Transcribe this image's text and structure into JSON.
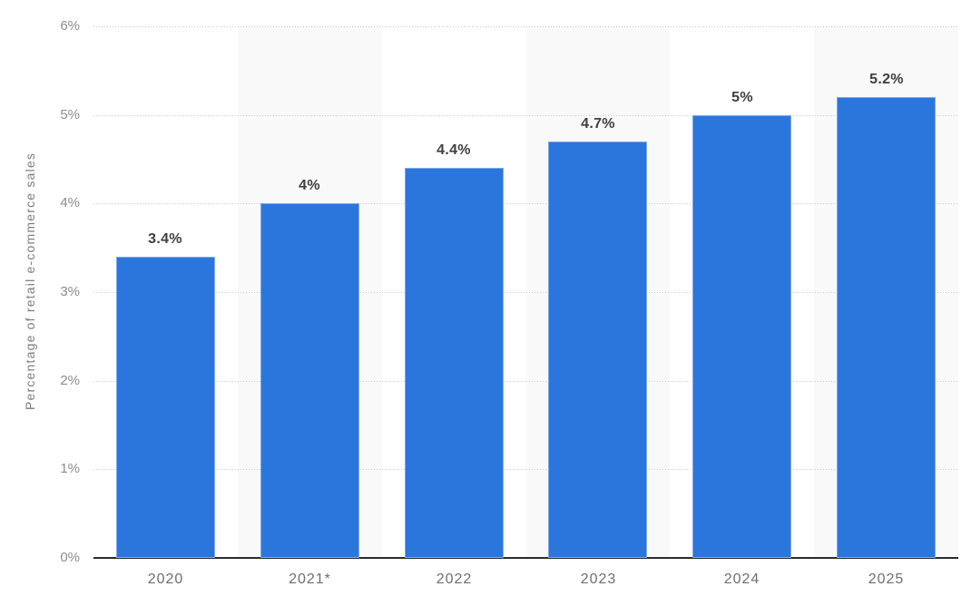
{
  "chart_data": {
    "type": "bar",
    "title": "",
    "xlabel": "",
    "ylabel": "Percentage of retail e-commerce sales",
    "categories": [
      "2020",
      "2021*",
      "2022",
      "2023",
      "2024",
      "2025"
    ],
    "values": [
      3.4,
      4,
      4.4,
      4.7,
      5,
      5.2
    ],
    "value_labels": [
      "3.4%",
      "4%",
      "4.4%",
      "4.7%",
      "5%",
      "5.2%"
    ],
    "ylim": [
      0,
      6
    ],
    "ytick_labels": [
      "0%",
      "1%",
      "2%",
      "3%",
      "4%",
      "5%",
      "6%"
    ],
    "grid": "horizontal-dotted",
    "legend": "none",
    "bar_color": "#2b76dc",
    "bar_edge_color": "#7fa9e8",
    "stripe_color": "#f9f9f9",
    "striped_columns": [
      1,
      3,
      5
    ],
    "gridline_color": "#c9c9c9",
    "axis_line_color": "#2b2b2b"
  }
}
